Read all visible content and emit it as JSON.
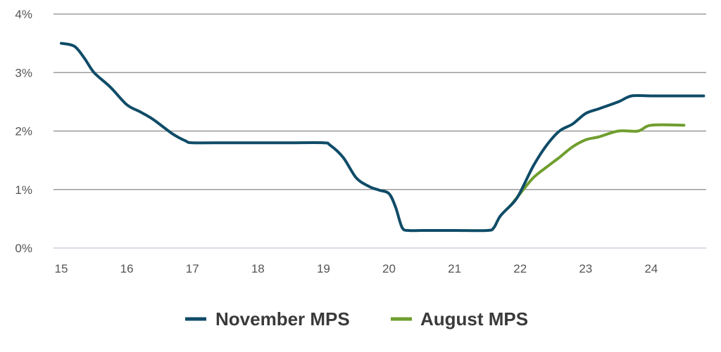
{
  "chart_data": {
    "type": "line",
    "title": "",
    "xlabel": "",
    "ylabel": "",
    "x_tick_labels": [
      "15",
      "16",
      "17",
      "18",
      "19",
      "20",
      "21",
      "22",
      "23",
      "24"
    ],
    "y_tick_labels": [
      "0%",
      "1%",
      "2%",
      "3%",
      "4%"
    ],
    "xlim": [
      15,
      24.8
    ],
    "ylim": [
      0,
      4
    ],
    "grid": "horizontal",
    "legend_position": "bottom-center",
    "series": [
      {
        "name": "November MPS",
        "color": "#0f4c68",
        "points": [
          [
            15.0,
            3.5
          ],
          [
            15.2,
            3.45
          ],
          [
            15.35,
            3.25
          ],
          [
            15.5,
            3.0
          ],
          [
            15.75,
            2.75
          ],
          [
            16.0,
            2.45
          ],
          [
            16.2,
            2.33
          ],
          [
            16.4,
            2.2
          ],
          [
            16.7,
            1.95
          ],
          [
            16.9,
            1.83
          ],
          [
            17.0,
            1.8
          ],
          [
            17.5,
            1.8
          ],
          [
            18.0,
            1.8
          ],
          [
            18.5,
            1.8
          ],
          [
            19.0,
            1.8
          ],
          [
            19.1,
            1.76
          ],
          [
            19.3,
            1.55
          ],
          [
            19.5,
            1.2
          ],
          [
            19.7,
            1.05
          ],
          [
            19.85,
            0.99
          ],
          [
            20.0,
            0.93
          ],
          [
            20.1,
            0.7
          ],
          [
            20.2,
            0.35
          ],
          [
            20.3,
            0.3
          ],
          [
            20.5,
            0.3
          ],
          [
            21.0,
            0.3
          ],
          [
            21.5,
            0.3
          ],
          [
            21.6,
            0.35
          ],
          [
            21.7,
            0.55
          ],
          [
            21.9,
            0.78
          ],
          [
            22.0,
            0.95
          ],
          [
            22.2,
            1.4
          ],
          [
            22.4,
            1.75
          ],
          [
            22.6,
            2.0
          ],
          [
            22.8,
            2.12
          ],
          [
            23.0,
            2.3
          ],
          [
            23.2,
            2.38
          ],
          [
            23.5,
            2.5
          ],
          [
            23.7,
            2.6
          ],
          [
            24.0,
            2.6
          ],
          [
            24.5,
            2.6
          ],
          [
            24.8,
            2.6
          ]
        ]
      },
      {
        "name": "August MPS",
        "color": "#6f9e2e",
        "points": [
          [
            21.85,
            0.72
          ],
          [
            22.0,
            0.93
          ],
          [
            22.2,
            1.2
          ],
          [
            22.4,
            1.38
          ],
          [
            22.6,
            1.55
          ],
          [
            22.8,
            1.73
          ],
          [
            23.0,
            1.85
          ],
          [
            23.2,
            1.9
          ],
          [
            23.5,
            2.0
          ],
          [
            23.8,
            2.0
          ],
          [
            24.0,
            2.1
          ],
          [
            24.5,
            2.1
          ]
        ]
      }
    ]
  },
  "legend": {
    "items": [
      {
        "label": "November MPS",
        "color": "#0f4c68"
      },
      {
        "label": "August MPS",
        "color": "#6f9e2e"
      }
    ]
  }
}
